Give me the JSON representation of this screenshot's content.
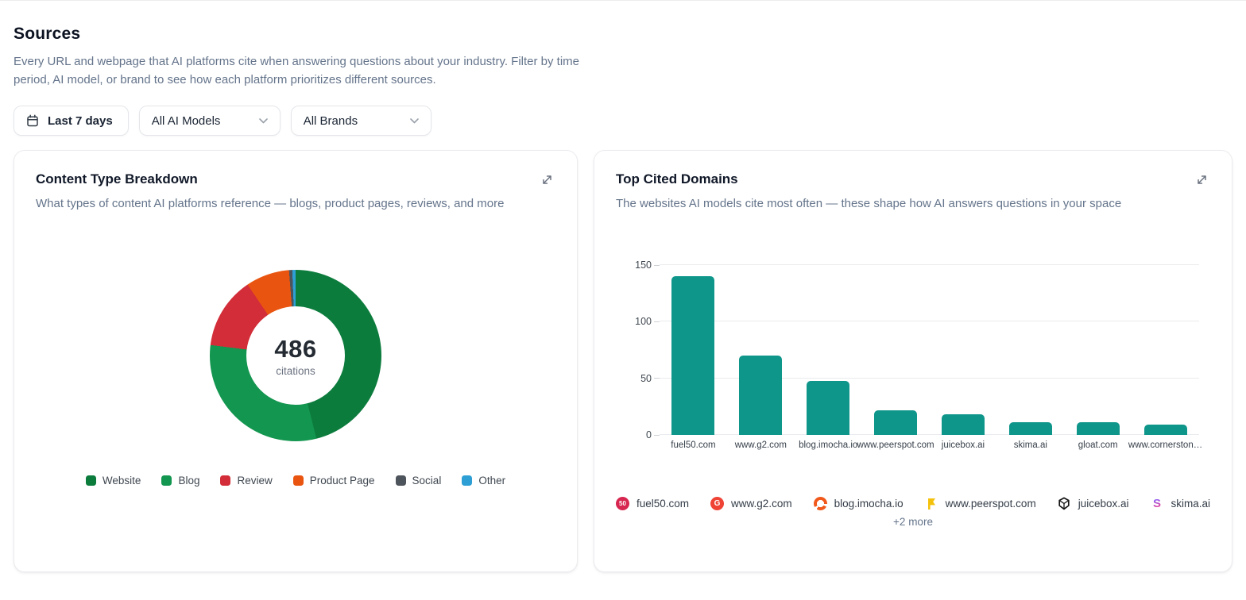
{
  "page": {
    "title": "Sources",
    "description": "Every URL and webpage that AI platforms cite when answering questions about your industry. Filter by time period, AI model, or brand to see how each platform prioritizes different sources."
  },
  "filters": {
    "date_range": "Last 7 days",
    "ai_model": "All AI Models",
    "brand": "All Brands"
  },
  "cards": {
    "content_type": {
      "title": "Content Type Breakdown",
      "subtitle": "What types of content AI platforms reference — blogs, product pages, reviews, and more"
    },
    "top_domains": {
      "title": "Top Cited Domains",
      "subtitle": "The websites AI models cite most often — these shape how AI answers questions in your space",
      "more_label": "+2 more",
      "favicons": [
        {
          "domain": "fuel50.com",
          "icon": "fuel50-favicon",
          "icon_text": "50",
          "color": "#d72650"
        },
        {
          "domain": "www.g2.com",
          "icon": "g2-favicon",
          "icon_text": "G",
          "color": "#ef4335"
        },
        {
          "domain": "blog.imocha.io",
          "icon": "imocha-favicon",
          "icon_text": "",
          "color": "#f1591c"
        },
        {
          "domain": "www.peerspot.com",
          "icon": "peerspot-favicon",
          "icon_text": "",
          "color": "#f4c20d"
        },
        {
          "domain": "juicebox.ai",
          "icon": "juicebox-favicon",
          "icon_text": "",
          "color": "#141414"
        },
        {
          "domain": "skima.ai",
          "icon": "skima-favicon",
          "icon_text": "S",
          "color": "#a855f7"
        }
      ]
    }
  },
  "chart_data": [
    {
      "type": "pie",
      "donut": true,
      "title": "Content Type Breakdown",
      "total": 486,
      "center": {
        "value": "486",
        "label": "citations"
      },
      "legend_position": "bottom",
      "segments": [
        {
          "label": "Website",
          "value": 224,
          "color": "#0c7c3d"
        },
        {
          "label": "Blog",
          "value": 150,
          "color": "#13964f"
        },
        {
          "label": "Review",
          "value": 66,
          "color": "#d22d38"
        },
        {
          "label": "Product Page",
          "value": 40,
          "color": "#e95510"
        },
        {
          "label": "Social",
          "value": 3,
          "color": "#4e545b"
        },
        {
          "label": "Other",
          "value": 3,
          "color": "#2e9fd4"
        }
      ]
    },
    {
      "type": "bar",
      "title": "Top Cited Domains",
      "categories": [
        "fuel50.com",
        "www.g2.com",
        "blog.imocha.io",
        "www.peerspot.com",
        "juicebox.ai",
        "skima.ai",
        "gloat.com",
        "www.cornerston…"
      ],
      "values": [
        140,
        70,
        48,
        22,
        18,
        11,
        11,
        9
      ],
      "xlabel": "",
      "ylabel": "",
      "ylim": [
        0,
        150
      ],
      "yticks": [
        0,
        50,
        100,
        150
      ],
      "bar_color": "#0f968b",
      "grid": true,
      "legend_position": "none"
    }
  ]
}
